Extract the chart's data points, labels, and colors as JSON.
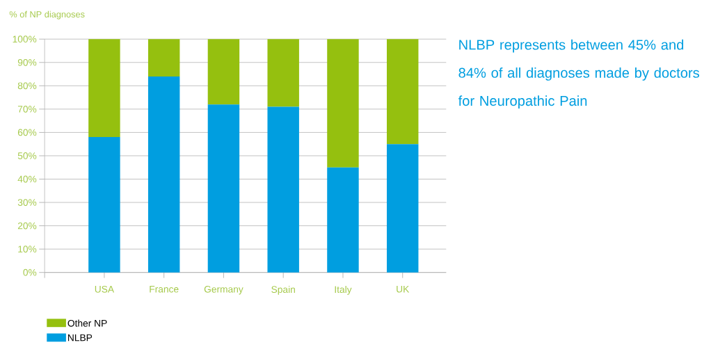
{
  "chart_data": {
    "type": "bar",
    "stacked": true,
    "ylabel": "% of NP diagnoses",
    "categories": [
      "USA",
      "France",
      "Germany",
      "Spain",
      "Italy",
      "UK"
    ],
    "series": [
      {
        "name": "NLBP",
        "color": "#009ee0",
        "values": [
          58,
          84,
          72,
          71,
          45,
          55
        ]
      },
      {
        "name": "Other NP",
        "color": "#95c00f",
        "values": [
          42,
          16,
          28,
          29,
          55,
          45
        ]
      }
    ],
    "ylim": [
      0,
      100
    ],
    "yticks": [
      {
        "value": 0,
        "label": "0%"
      },
      {
        "value": 10,
        "label": "10%"
      },
      {
        "value": 20,
        "label": "20%"
      },
      {
        "value": 30,
        "label": "30%"
      },
      {
        "value": 40,
        "label": "40%"
      },
      {
        "value": 50,
        "label": "50%"
      },
      {
        "value": 60,
        "label": "60%"
      },
      {
        "value": 70,
        "label": "70%"
      },
      {
        "value": 80,
        "label": "80%"
      },
      {
        "value": 90,
        "label": "90%"
      },
      {
        "value": 100,
        "label": "100%"
      }
    ],
    "grid": "y",
    "legend": "bottom left",
    "annotations": [
      "NLBP represents between 45% and 84% of all diagnoses made by doctors for Neuropathic Pain"
    ]
  }
}
